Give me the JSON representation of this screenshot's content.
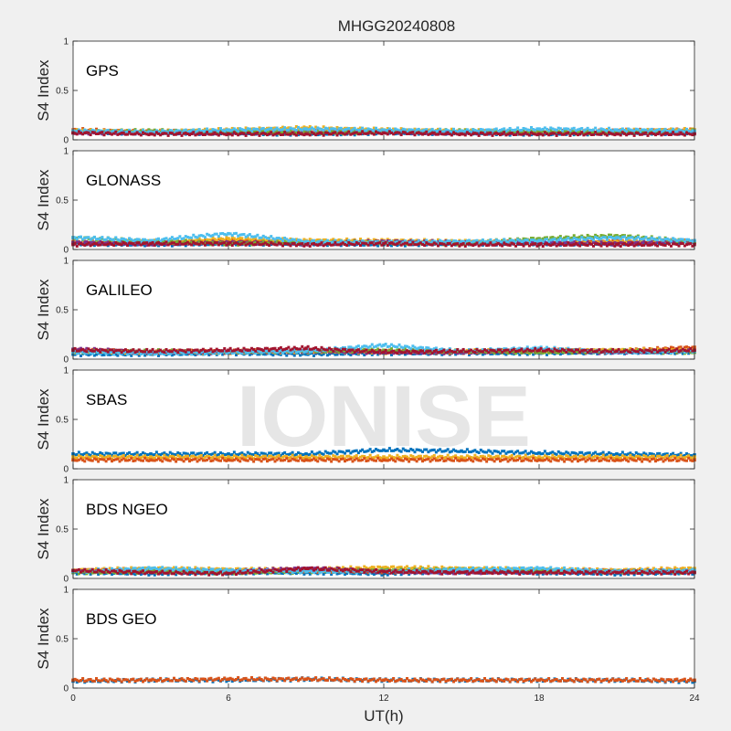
{
  "figure": {
    "title": "MHGG20240808",
    "xlabel": "UT(h)",
    "watermark": "IONISE"
  },
  "chart_data": {
    "type": "scatter",
    "title": "MHGG20240808",
    "xlabel": "UT(h)",
    "xlim": [
      0,
      24
    ],
    "xticks": [
      0,
      6,
      12,
      18,
      24
    ],
    "grid": false,
    "panels": [
      {
        "label": "GPS",
        "ylabel": "S4 Index",
        "ylim": [
          0,
          1
        ],
        "yticks": [
          0,
          0.5,
          1
        ],
        "series": [
          {
            "color": "#0072BD",
            "x": [
              0,
              3,
              6,
              9,
              12,
              15,
              18,
              21,
              24
            ],
            "y": [
              0.08,
              0.07,
              0.07,
              0.06,
              0.07,
              0.07,
              0.06,
              0.07,
              0.07
            ]
          },
          {
            "color": "#D95319",
            "x": [
              0,
              3,
              6,
              9,
              12,
              15,
              18,
              21,
              24
            ],
            "y": [
              0.1,
              0.08,
              0.09,
              0.08,
              0.09,
              0.08,
              0.08,
              0.09,
              0.1
            ]
          },
          {
            "color": "#EDB120",
            "x": [
              0,
              3,
              6,
              9,
              12,
              15,
              18,
              21,
              24
            ],
            "y": [
              0.09,
              0.08,
              0.1,
              0.12,
              0.1,
              0.09,
              0.08,
              0.09,
              0.1
            ]
          },
          {
            "color": "#7E2F8E",
            "x": [
              0,
              3,
              6,
              9,
              12,
              15,
              18,
              21,
              24
            ],
            "y": [
              0.07,
              0.08,
              0.07,
              0.08,
              0.08,
              0.07,
              0.08,
              0.08,
              0.07
            ]
          },
          {
            "color": "#77AC30",
            "x": [
              0,
              3,
              6,
              9,
              12,
              15,
              18,
              21,
              24
            ],
            "y": [
              0.08,
              0.09,
              0.08,
              0.07,
              0.08,
              0.09,
              0.08,
              0.07,
              0.09
            ]
          },
          {
            "color": "#4DBEEE",
            "x": [
              0,
              3,
              6,
              9,
              12,
              15,
              18,
              21,
              24
            ],
            "y": [
              0.09,
              0.08,
              0.1,
              0.11,
              0.1,
              0.09,
              0.11,
              0.1,
              0.09
            ]
          },
          {
            "color": "#A2142F",
            "x": [
              0,
              3,
              6,
              9,
              12,
              15,
              18,
              21,
              24
            ],
            "y": [
              0.07,
              0.06,
              0.06,
              0.06,
              0.07,
              0.06,
              0.06,
              0.06,
              0.06
            ]
          }
        ]
      },
      {
        "label": "GLONASS",
        "ylabel": "S4 Index",
        "ylim": [
          0,
          1
        ],
        "yticks": [
          0,
          0.5,
          1
        ],
        "series": [
          {
            "color": "#0072BD",
            "x": [
              0,
              3,
              6,
              9,
              12,
              15,
              18,
              21,
              24
            ],
            "y": [
              0.06,
              0.05,
              0.06,
              0.06,
              0.05,
              0.06,
              0.06,
              0.06,
              0.07
            ]
          },
          {
            "color": "#D95319",
            "x": [
              0,
              3,
              6,
              9,
              12,
              15,
              18,
              21,
              24
            ],
            "y": [
              0.08,
              0.07,
              0.09,
              0.08,
              0.08,
              0.07,
              0.08,
              0.09,
              0.08
            ]
          },
          {
            "color": "#EDB120",
            "x": [
              0,
              3,
              6,
              9,
              12,
              15,
              18,
              21,
              24
            ],
            "y": [
              0.07,
              0.08,
              0.11,
              0.09,
              0.09,
              0.08,
              0.07,
              0.08,
              0.08
            ]
          },
          {
            "color": "#7E2F8E",
            "x": [
              0,
              3,
              6,
              9,
              12,
              15,
              18,
              21,
              24
            ],
            "y": [
              0.07,
              0.06,
              0.07,
              0.06,
              0.08,
              0.07,
              0.07,
              0.06,
              0.08
            ]
          },
          {
            "color": "#77AC30",
            "x": [
              0,
              3,
              6,
              9,
              12,
              15,
              18,
              21,
              24
            ],
            "y": [
              0.12,
              0.08,
              0.06,
              0.07,
              0.07,
              0.06,
              0.11,
              0.14,
              0.08
            ]
          },
          {
            "color": "#4DBEEE",
            "x": [
              0,
              3,
              6,
              9,
              12,
              15,
              18,
              21,
              24
            ],
            "y": [
              0.12,
              0.09,
              0.16,
              0.08,
              0.07,
              0.08,
              0.09,
              0.12,
              0.09
            ]
          },
          {
            "color": "#A2142F",
            "x": [
              0,
              3,
              6,
              9,
              12,
              15,
              18,
              21,
              24
            ],
            "y": [
              0.05,
              0.06,
              0.06,
              0.05,
              0.06,
              0.05,
              0.05,
              0.05,
              0.05
            ]
          }
        ]
      },
      {
        "label": "GALILEO",
        "ylabel": "S4 Index",
        "ylim": [
          0,
          1
        ],
        "yticks": [
          0,
          0.5,
          1
        ],
        "series": [
          {
            "color": "#0072BD",
            "x": [
              0,
              3,
              6,
              9,
              12,
              15,
              18,
              21,
              24
            ],
            "y": [
              0.05,
              0.05,
              0.06,
              0.05,
              0.06,
              0.06,
              0.06,
              0.07,
              0.07
            ]
          },
          {
            "color": "#D95319",
            "x": [
              0,
              3,
              6,
              9,
              12,
              15,
              18,
              21,
              24
            ],
            "y": [
              0.09,
              0.07,
              0.08,
              0.08,
              0.08,
              0.07,
              0.09,
              0.08,
              0.12
            ]
          },
          {
            "color": "#EDB120",
            "x": [
              0,
              3,
              6,
              9,
              12,
              15,
              18,
              21,
              24
            ],
            "y": [
              0.08,
              0.07,
              0.07,
              0.08,
              0.07,
              0.08,
              0.08,
              0.09,
              0.09
            ]
          },
          {
            "color": "#7E2F8E",
            "x": [
              0,
              3,
              6,
              9,
              12,
              15,
              18,
              21,
              24
            ],
            "y": [
              0.1,
              0.07,
              0.07,
              0.08,
              0.07,
              0.07,
              0.08,
              0.07,
              0.08
            ]
          },
          {
            "color": "#77AC30",
            "x": [
              0,
              3,
              6,
              9,
              12,
              15,
              18,
              21,
              24
            ],
            "y": [
              0.07,
              0.08,
              0.07,
              0.08,
              0.09,
              0.08,
              0.07,
              0.08,
              0.07
            ]
          },
          {
            "color": "#4DBEEE",
            "x": [
              0,
              3,
              6,
              9,
              12,
              15,
              18,
              21,
              24
            ],
            "y": [
              0.07,
              0.06,
              0.07,
              0.08,
              0.14,
              0.08,
              0.11,
              0.07,
              0.08
            ]
          },
          {
            "color": "#A2142F",
            "x": [
              0,
              3,
              6,
              9,
              12,
              15,
              18,
              21,
              24
            ],
            "y": [
              0.09,
              0.08,
              0.09,
              0.11,
              0.07,
              0.08,
              0.09,
              0.08,
              0.09
            ]
          }
        ]
      },
      {
        "label": "SBAS",
        "ylabel": "S4 Index",
        "ylim": [
          0,
          1
        ],
        "yticks": [
          0,
          0.5,
          1
        ],
        "series": [
          {
            "color": "#0072BD",
            "x": [
              0,
              3,
              6,
              9,
              12,
              15,
              18,
              21,
              24
            ],
            "y": [
              0.15,
              0.15,
              0.15,
              0.15,
              0.19,
              0.18,
              0.16,
              0.15,
              0.14
            ]
          },
          {
            "color": "#EDB120",
            "x": [
              0,
              3,
              6,
              9,
              12,
              15,
              18,
              21,
              24
            ],
            "y": [
              0.12,
              0.12,
              0.12,
              0.12,
              0.12,
              0.12,
              0.12,
              0.12,
              0.12
            ]
          },
          {
            "color": "#D95319",
            "x": [
              0,
              3,
              6,
              9,
              12,
              15,
              18,
              21,
              24
            ],
            "y": [
              0.09,
              0.09,
              0.09,
              0.09,
              0.09,
              0.09,
              0.09,
              0.09,
              0.09
            ]
          }
        ]
      },
      {
        "label": "BDS NGEO",
        "ylabel": "S4 Index",
        "ylim": [
          0,
          1
        ],
        "yticks": [
          0,
          0.5,
          1
        ],
        "series": [
          {
            "color": "#0072BD",
            "x": [
              0,
              3,
              6,
              9,
              12,
              15,
              18,
              21,
              24
            ],
            "y": [
              0.06,
              0.05,
              0.06,
              0.06,
              0.05,
              0.07,
              0.06,
              0.05,
              0.06
            ]
          },
          {
            "color": "#D95319",
            "x": [
              0,
              3,
              6,
              9,
              12,
              15,
              18,
              21,
              24
            ],
            "y": [
              0.08,
              0.09,
              0.08,
              0.08,
              0.07,
              0.08,
              0.08,
              0.08,
              0.09
            ]
          },
          {
            "color": "#EDB120",
            "x": [
              0,
              3,
              6,
              9,
              12,
              15,
              18,
              21,
              24
            ],
            "y": [
              0.08,
              0.1,
              0.09,
              0.09,
              0.11,
              0.1,
              0.09,
              0.08,
              0.1
            ]
          },
          {
            "color": "#7E2F8E",
            "x": [
              0,
              3,
              6,
              9,
              12,
              15,
              18,
              21,
              24
            ],
            "y": [
              0.07,
              0.07,
              0.07,
              0.1,
              0.07,
              0.06,
              0.07,
              0.07,
              0.07
            ]
          },
          {
            "color": "#77AC30",
            "x": [
              0,
              3,
              6,
              9,
              12,
              15,
              18,
              21,
              24
            ],
            "y": [
              0.06,
              0.07,
              0.06,
              0.07,
              0.08,
              0.09,
              0.08,
              0.07,
              0.07
            ]
          },
          {
            "color": "#4DBEEE",
            "x": [
              0,
              3,
              6,
              9,
              12,
              15,
              18,
              21,
              24
            ],
            "y": [
              0.07,
              0.1,
              0.08,
              0.07,
              0.07,
              0.09,
              0.1,
              0.07,
              0.08
            ]
          },
          {
            "color": "#A2142F",
            "x": [
              0,
              3,
              6,
              9,
              12,
              15,
              18,
              21,
              24
            ],
            "y": [
              0.08,
              0.06,
              0.05,
              0.1,
              0.07,
              0.06,
              0.06,
              0.06,
              0.06
            ]
          }
        ]
      },
      {
        "label": "BDS GEO",
        "ylabel": "S4 Index",
        "ylim": [
          0,
          1
        ],
        "yticks": [
          0,
          0.5,
          1
        ],
        "series": [
          {
            "color": "#0072BD",
            "x": [
              0,
              3,
              6,
              9,
              12,
              15,
              18,
              21,
              24
            ],
            "y": [
              0.07,
              0.08,
              0.08,
              0.09,
              0.08,
              0.08,
              0.08,
              0.08,
              0.07
            ]
          },
          {
            "color": "#D95319",
            "x": [
              0,
              3,
              6,
              9,
              12,
              15,
              18,
              21,
              24
            ],
            "y": [
              0.08,
              0.08,
              0.09,
              0.09,
              0.08,
              0.08,
              0.08,
              0.08,
              0.08
            ]
          }
        ]
      }
    ]
  }
}
